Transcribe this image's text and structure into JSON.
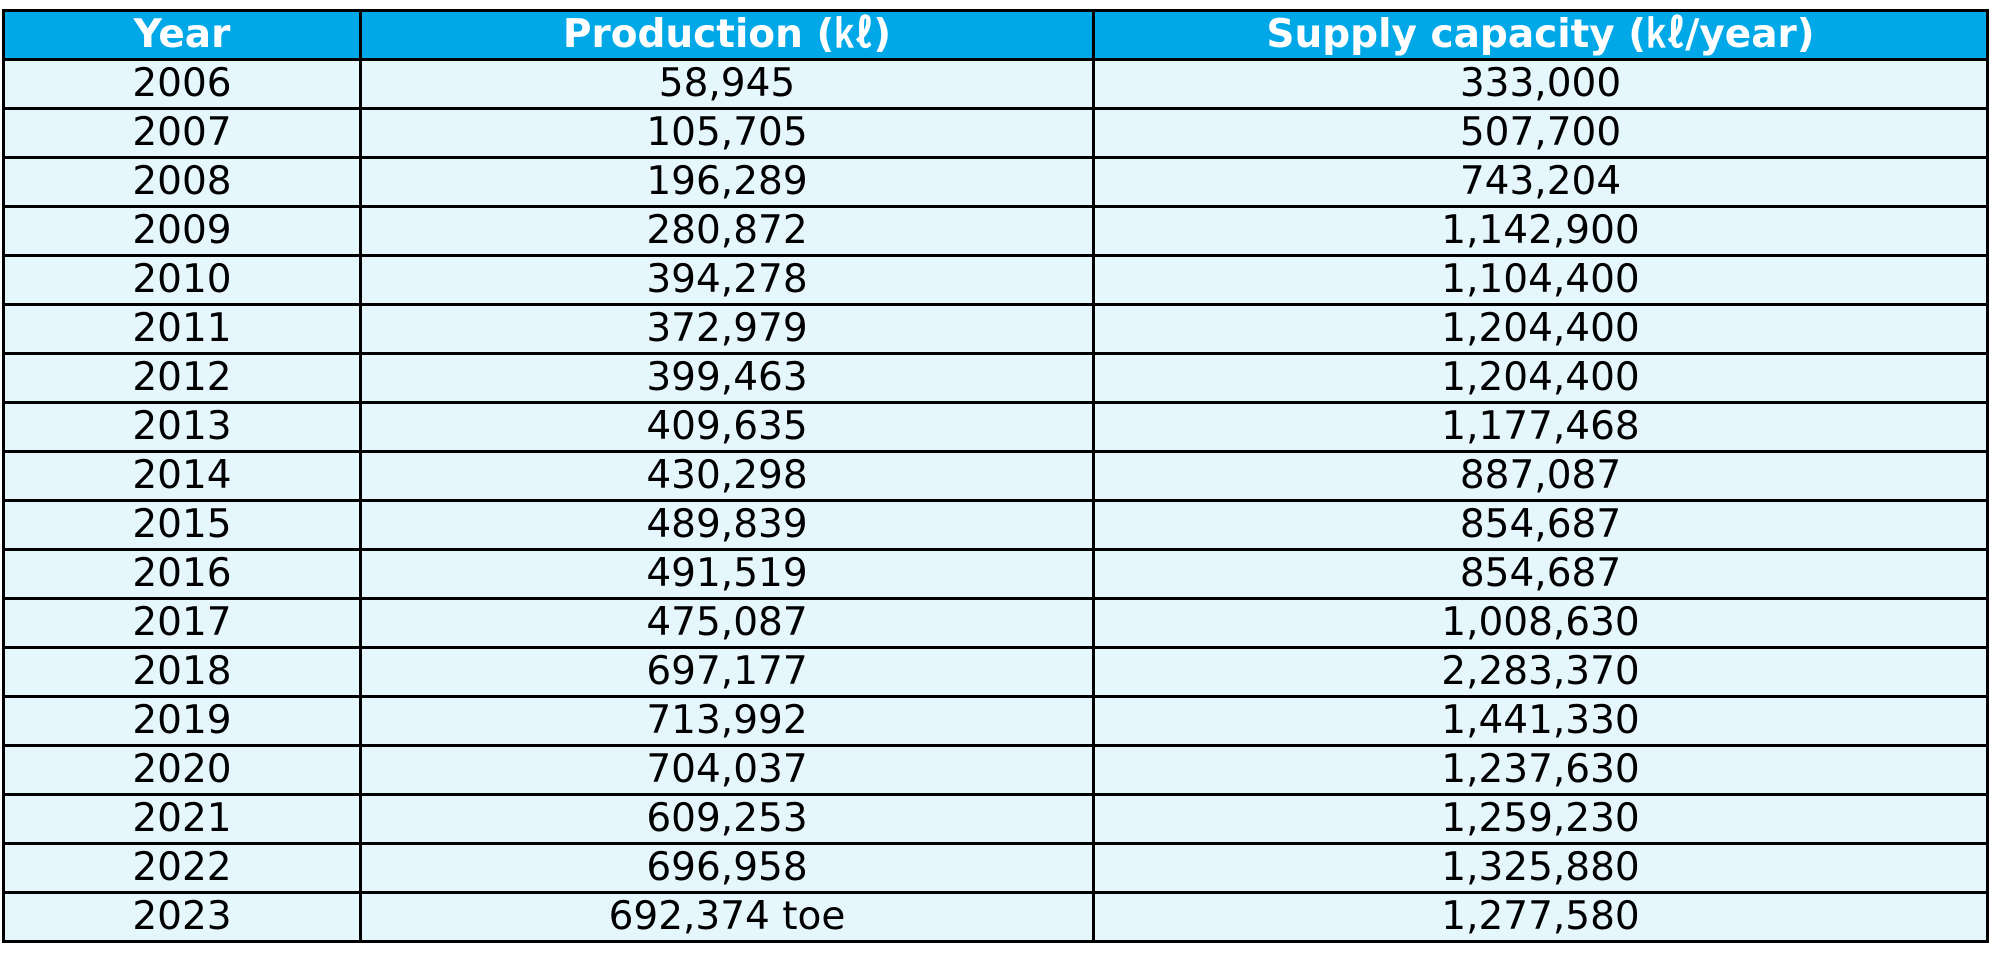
{
  "colors": {
    "header_background": "#00a8e8",
    "header_text": "#ffffff",
    "row_background": "#e6f6fd",
    "border": "#000000"
  },
  "chart_data": {
    "type": "table",
    "columns": [
      "Year",
      "Production (㎘)",
      "Supply capacity (㎘/year)"
    ],
    "rows": [
      [
        "2006",
        "58,945",
        "333,000"
      ],
      [
        "2007",
        "105,705",
        "507,700"
      ],
      [
        "2008",
        "196,289",
        "743,204"
      ],
      [
        "2009",
        "280,872",
        "1,142,900"
      ],
      [
        "2010",
        "394,278",
        "1,104,400"
      ],
      [
        "2011",
        "372,979",
        "1,204,400"
      ],
      [
        "2012",
        "399,463",
        "1,204,400"
      ],
      [
        "2013",
        "409,635",
        "1,177,468"
      ],
      [
        "2014",
        "430,298",
        "887,087"
      ],
      [
        "2015",
        "489,839",
        "854,687"
      ],
      [
        "2016",
        "491,519",
        "854,687"
      ],
      [
        "2017",
        "475,087",
        "1,008,630"
      ],
      [
        "2018",
        "697,177",
        "2,283,370"
      ],
      [
        "2019",
        "713,992",
        "1,441,330"
      ],
      [
        "2020",
        "704,037",
        "1,237,630"
      ],
      [
        "2021",
        "609,253",
        "1,259,230"
      ],
      [
        "2022",
        "696,958",
        "1,325,880"
      ],
      [
        "2023",
        "692,374 toe",
        "1,277,580"
      ]
    ]
  }
}
